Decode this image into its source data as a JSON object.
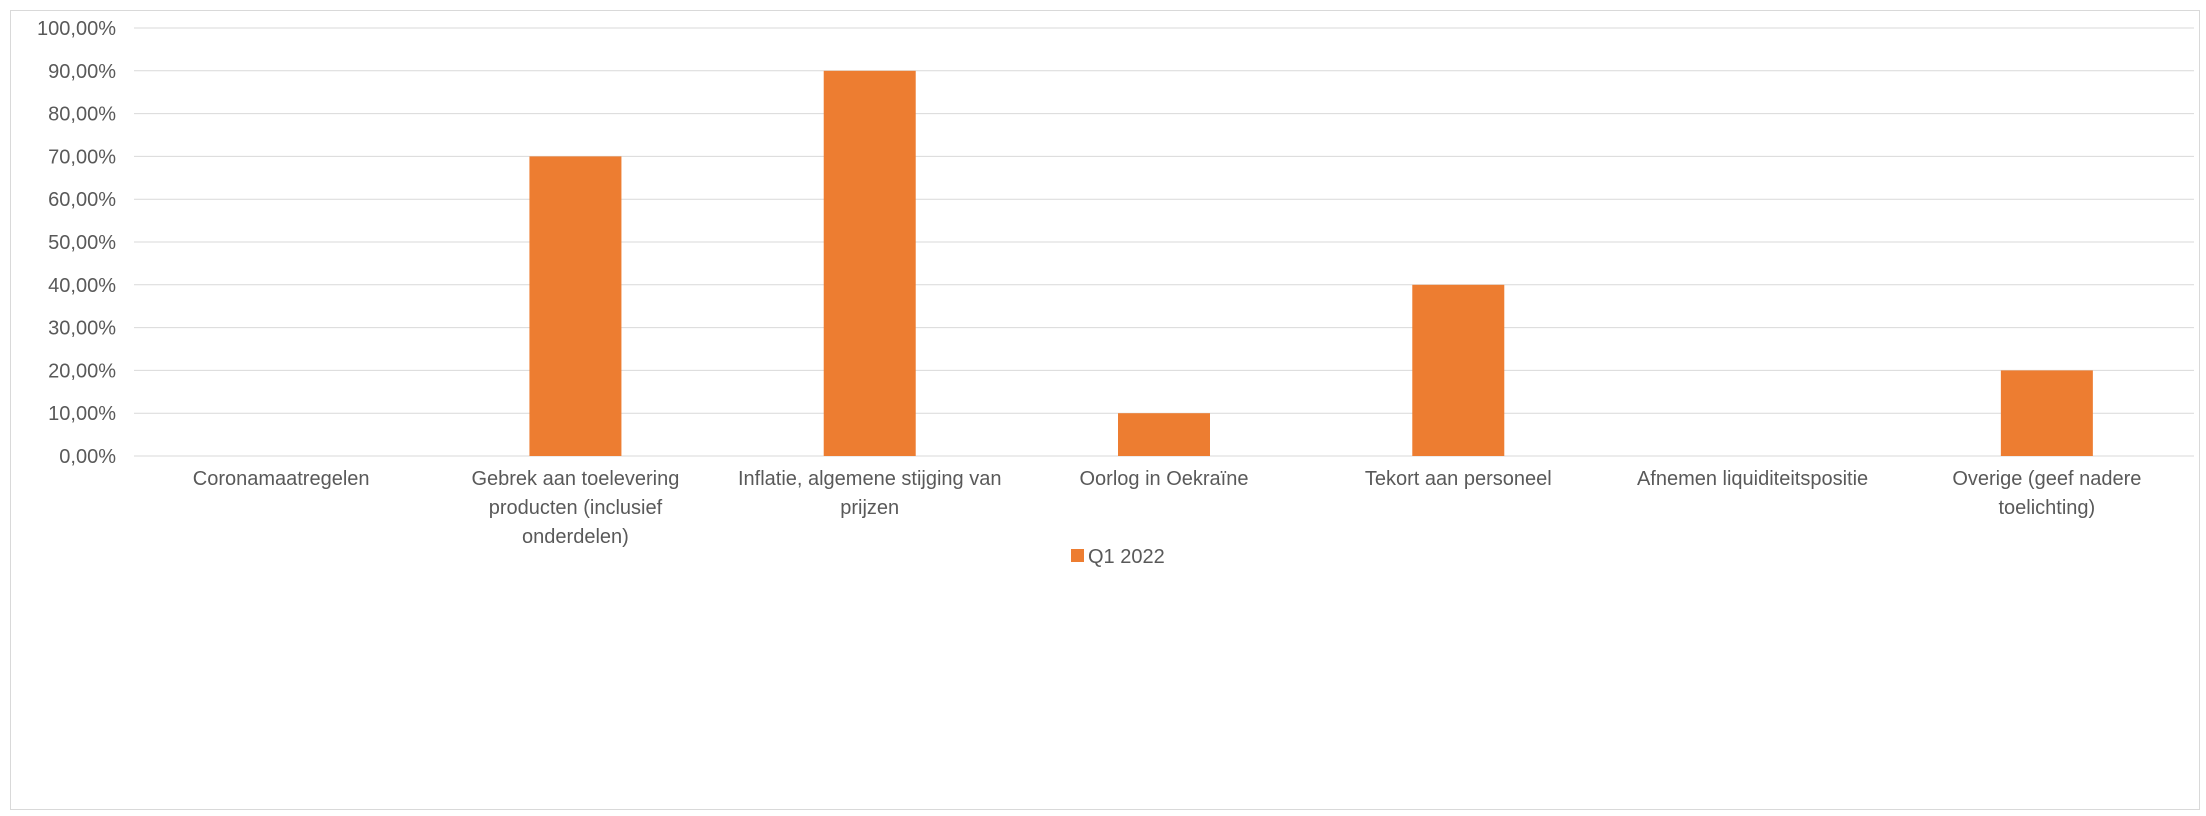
{
  "chart_data": {
    "type": "bar",
    "title": "",
    "xlabel": "",
    "ylabel": "",
    "categories": [
      [
        "Coronamaatregelen"
      ],
      [
        "Gebrek aan toelevering",
        "producten (inclusief",
        "onderdelen)"
      ],
      [
        "Inflatie, algemene stijging van",
        "prijzen"
      ],
      [
        "Oorlog in Oekraïne"
      ],
      [
        "Tekort aan personeel"
      ],
      [
        "Afnemen liquiditeitspositie"
      ],
      [
        "Overige (geef nadere",
        "toelichting)"
      ]
    ],
    "series": [
      {
        "name": "Q1 2022",
        "values": [
          0,
          70,
          90,
          10,
          40,
          0,
          20
        ],
        "color": "#ED7D31"
      }
    ],
    "ylim": [
      0,
      100
    ],
    "yticks": [
      "0,00%",
      "10,00%",
      "20,00%",
      "30,00%",
      "40,00%",
      "50,00%",
      "60,00%",
      "70,00%",
      "80,00%",
      "90,00%",
      "100,00%"
    ],
    "grid": true,
    "legend_position": "bottom",
    "gridline_color": "#d9d9d9"
  }
}
